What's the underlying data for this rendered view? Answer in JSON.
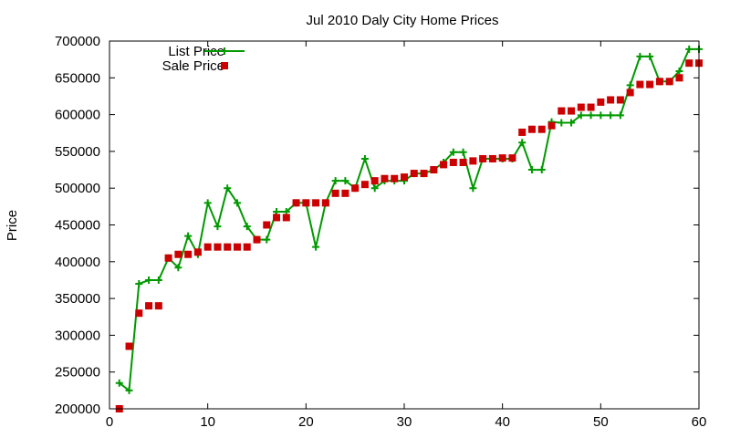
{
  "chart_data": {
    "type": "scatter",
    "title": "Jul 2010 Daly City Home Prices",
    "xlabel": "",
    "ylabel": "Price",
    "xlim": [
      0,
      60
    ],
    "ylim": [
      200000,
      700000
    ],
    "xticks": [
      0,
      10,
      20,
      30,
      40,
      50,
      60
    ],
    "yticks": [
      200000,
      250000,
      300000,
      350000,
      400000,
      450000,
      500000,
      550000,
      600000,
      650000,
      700000
    ],
    "grid": false,
    "legend_position": "top-left",
    "series": [
      {
        "name": "List Price",
        "style": "line-with-plus-markers",
        "color": "#009900",
        "x": [
          1,
          2,
          3,
          4,
          5,
          6,
          7,
          8,
          9,
          10,
          11,
          12,
          13,
          14,
          15,
          16,
          17,
          18,
          19,
          20,
          21,
          22,
          23,
          24,
          25,
          26,
          27,
          28,
          29,
          30,
          31,
          32,
          33,
          34,
          35,
          36,
          37,
          38,
          39,
          40,
          41,
          42,
          43,
          44,
          45,
          46,
          47,
          48,
          49,
          50,
          51,
          52,
          53,
          54,
          55,
          56,
          57,
          58,
          59,
          60
        ],
        "y": [
          235000,
          225000,
          370000,
          375000,
          375000,
          405000,
          392000,
          435000,
          410000,
          480000,
          448000,
          500000,
          480000,
          448000,
          430000,
          430000,
          468000,
          468000,
          480000,
          480000,
          420000,
          480000,
          510000,
          510000,
          500000,
          540000,
          500000,
          510000,
          510000,
          510000,
          520000,
          520000,
          525000,
          535000,
          549000,
          549000,
          500000,
          540000,
          540000,
          540000,
          540000,
          562000,
          525000,
          525000,
          590000,
          589000,
          589000,
          599000,
          599000,
          599000,
          599000,
          599000,
          640000,
          679000,
          679000,
          645000,
          645000,
          659000,
          689000,
          689000
        ]
      },
      {
        "name": "Sale Price",
        "style": "square-markers",
        "color": "#cc0000",
        "x": [
          1,
          2,
          3,
          4,
          5,
          6,
          7,
          8,
          9,
          10,
          11,
          12,
          13,
          14,
          15,
          16,
          17,
          18,
          19,
          20,
          21,
          22,
          23,
          24,
          25,
          26,
          27,
          28,
          29,
          30,
          31,
          32,
          33,
          34,
          35,
          36,
          37,
          38,
          39,
          40,
          41,
          42,
          43,
          44,
          45,
          46,
          47,
          48,
          49,
          50,
          51,
          52,
          53,
          54,
          55,
          56,
          57,
          58,
          59,
          60
        ],
        "y": [
          200000,
          285000,
          330000,
          340000,
          340000,
          405000,
          410000,
          410000,
          413000,
          420000,
          420000,
          420000,
          420000,
          420000,
          430000,
          450000,
          460000,
          460000,
          480000,
          480000,
          480000,
          480000,
          493000,
          493000,
          500000,
          505000,
          510000,
          513000,
          513000,
          515000,
          520000,
          520000,
          525000,
          532000,
          535000,
          535000,
          537000,
          540000,
          540000,
          541000,
          541000,
          576000,
          580000,
          580000,
          585000,
          605000,
          605000,
          610000,
          610000,
          617000,
          620000,
          620000,
          630000,
          641000,
          641000,
          645000,
          645000,
          650000,
          670000,
          670000
        ]
      }
    ]
  }
}
